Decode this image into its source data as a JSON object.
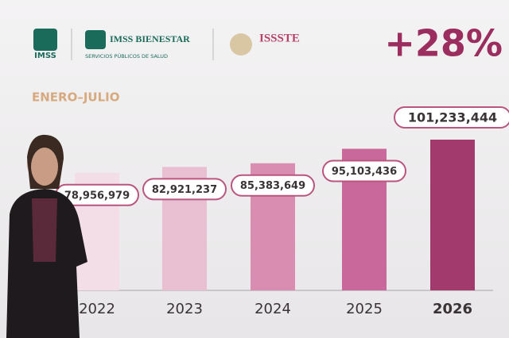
{
  "chart_data": {
    "type": "bar",
    "headline": "+28%",
    "subtitle": "ENERO–JULIO",
    "logos": [
      "IMSS",
      "IMSS BIENESTAR",
      "SERVICIOS PÚBLICOS DE SALUD",
      "ISSSTE"
    ],
    "categories": [
      "2022",
      "2023",
      "2024",
      "2025",
      "2026"
    ],
    "values": [
      78956979,
      82921237,
      85383649,
      95103436,
      101233444
    ],
    "value_labels": [
      "78,956,979",
      "82,921,237",
      "85,383,649",
      "95,103,436",
      "101,233,444"
    ],
    "colors": [
      "#f3dde6",
      "#e9bfd2",
      "#d98db0",
      "#c9689a",
      "#a33a6e"
    ]
  }
}
